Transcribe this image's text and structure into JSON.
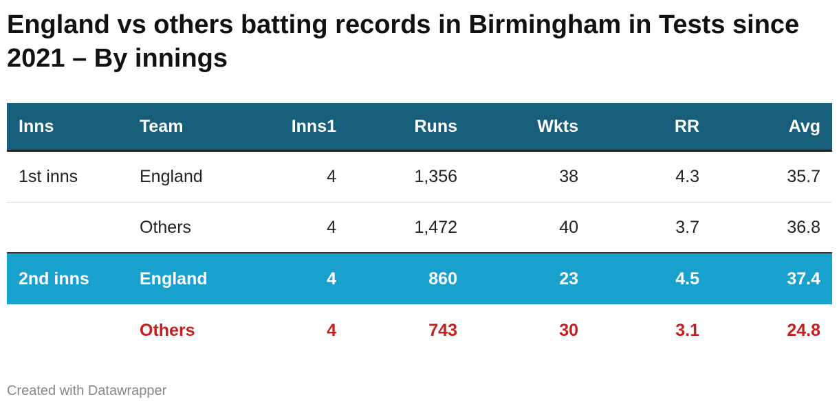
{
  "header": {
    "title": "England vs others batting records in Birmingham in Tests since 2021 – By innings"
  },
  "table": {
    "columns": [
      "Inns",
      "Team",
      "Inns1",
      "Runs",
      "Wkts",
      "RR",
      "Avg"
    ],
    "rows": [
      [
        "1st inns",
        "England",
        4,
        "1,356",
        38,
        4.3,
        35.7
      ],
      [
        null,
        "Others",
        4,
        "1,472",
        40,
        3.7,
        36.8
      ],
      [
        "2nd inns",
        "England",
        4,
        860,
        23,
        4.5,
        37.4
      ],
      [
        null,
        "Others",
        4,
        743,
        30,
        3.1,
        24.8
      ]
    ]
  },
  "footer": {
    "credit": "Created with Datawrapper"
  }
}
